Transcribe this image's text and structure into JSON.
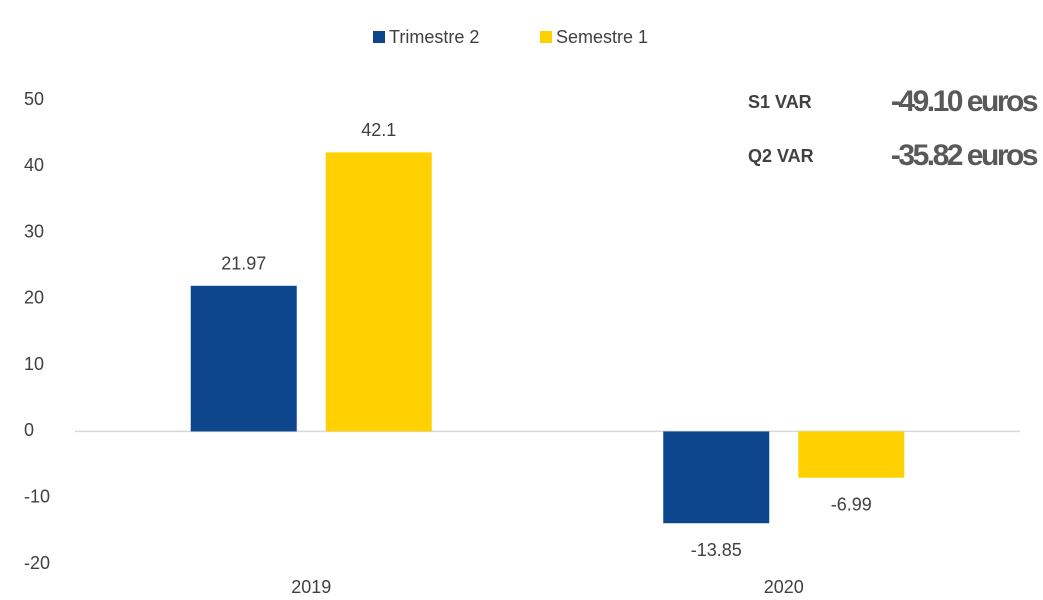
{
  "chart_data": {
    "type": "bar",
    "categories": [
      "2019",
      "2020"
    ],
    "series": [
      {
        "name": "Trimestre 2",
        "color": "#0d468c",
        "values": [
          21.97,
          -13.85
        ]
      },
      {
        "name": "Semestre 1",
        "color": "#ffd100",
        "values": [
          42.1,
          -6.99
        ]
      }
    ],
    "ylim": [
      -20,
      50
    ],
    "yticks": [
      -20,
      -10,
      0,
      10,
      20,
      30,
      40,
      50
    ],
    "grid": false,
    "legend": "top",
    "annotations": [
      {
        "label": "S1 VAR",
        "value": "-49.10 euros"
      },
      {
        "label": "Q2 VAR",
        "value": "-35.82 euros"
      }
    ]
  }
}
